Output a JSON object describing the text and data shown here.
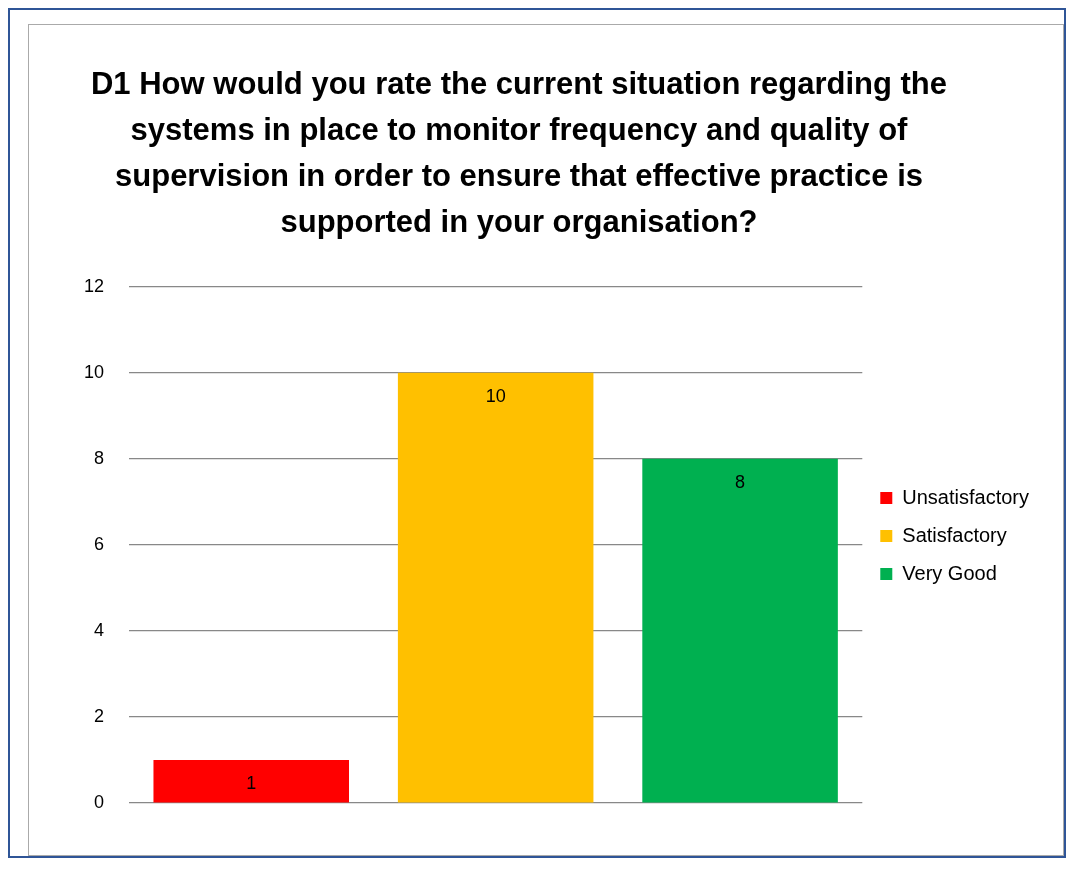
{
  "chart_data": {
    "type": "bar",
    "title": "D1 How would you rate the current situation regarding  the systems in place to monitor frequency and quality of supervision in order to ensure that effective practice is supported in your organisation?",
    "categories": [
      null,
      null,
      null
    ],
    "series": [
      {
        "name": "Unsatisfactory",
        "color": "#ff0000",
        "values": [
          1,
          null,
          null
        ]
      },
      {
        "name": "Satisfactory",
        "color": "#ffc000",
        "values": [
          null,
          10,
          null
        ]
      },
      {
        "name": "Very Good",
        "color": "#00b050",
        "values": [
          null,
          null,
          8
        ]
      }
    ],
    "ylim": [
      0,
      12
    ],
    "yticks": [
      0,
      2,
      4,
      6,
      8,
      10,
      12
    ],
    "grid": "y",
    "legend": "right",
    "data_labels": true
  }
}
